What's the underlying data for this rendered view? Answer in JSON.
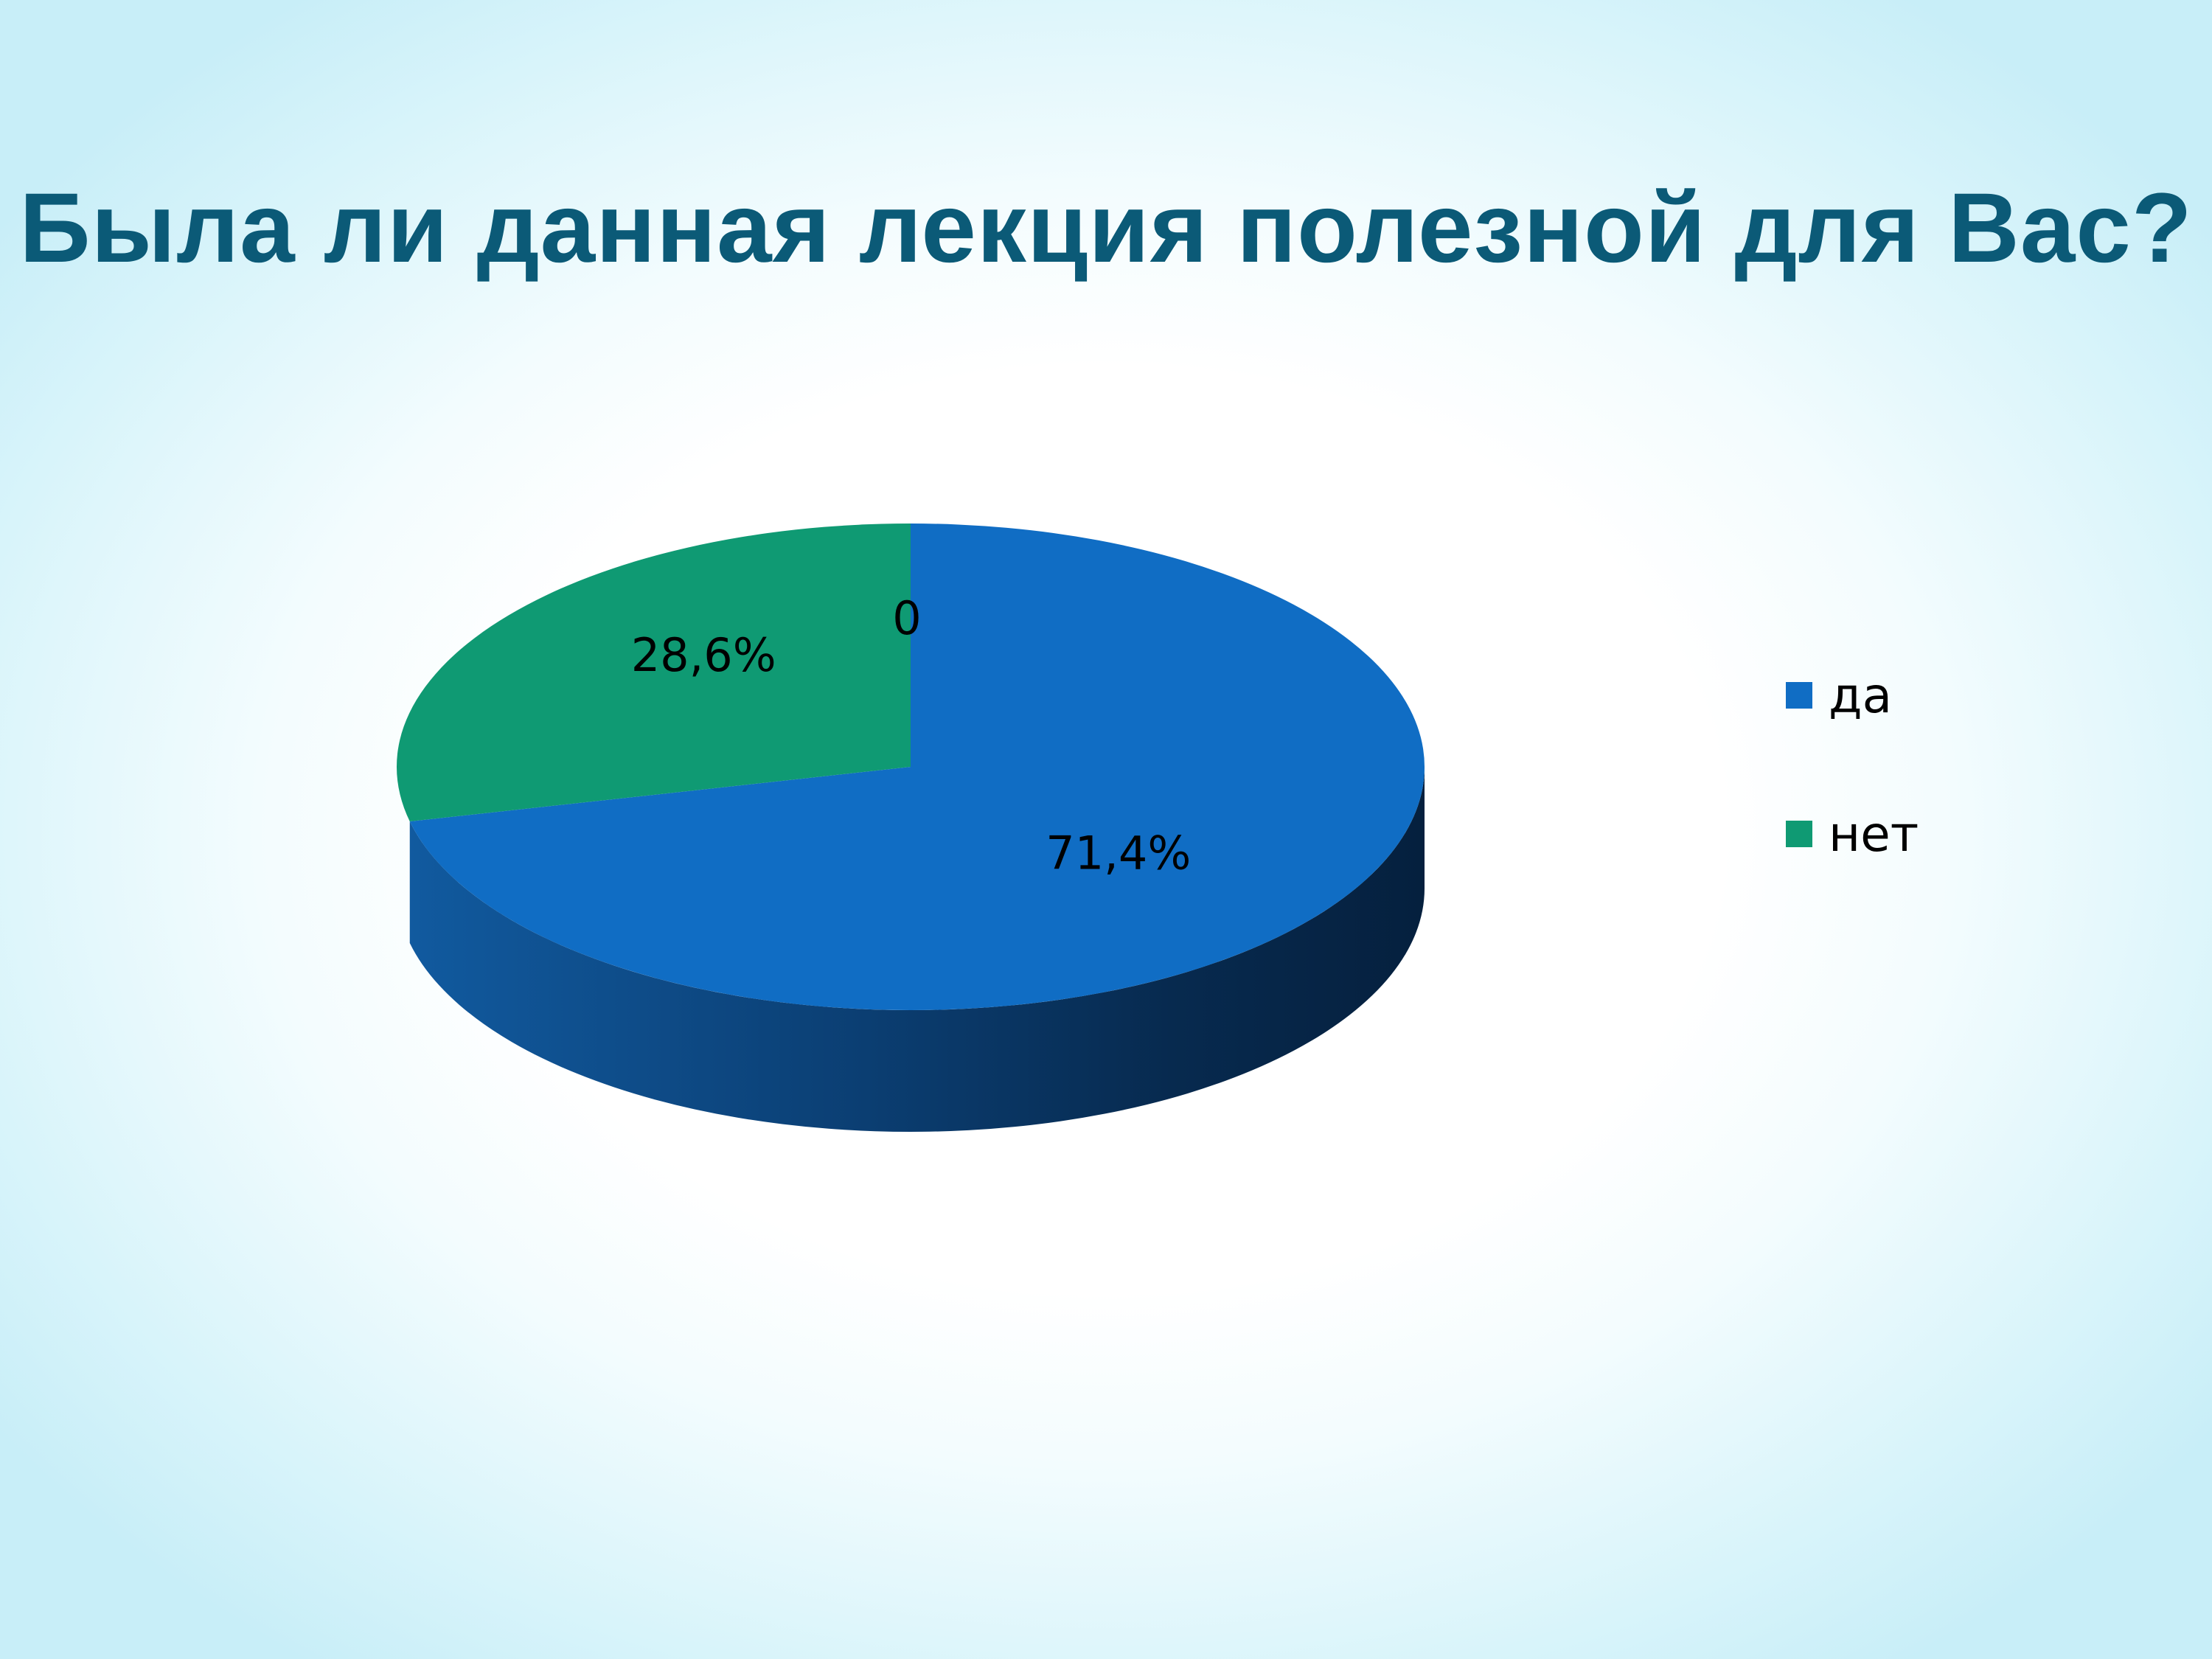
{
  "slide": {
    "title": "Была ли данная лекция полезной для Вас?"
  },
  "chart_data": {
    "type": "pie",
    "title": "Была ли данная лекция полезной для Вас?",
    "three_d": true,
    "categories": [
      "да",
      "нет"
    ],
    "values": [
      71.4,
      28.6
    ],
    "data_labels": [
      "71,4%",
      "28,6%"
    ],
    "extra_labels": [
      "0"
    ],
    "colors": [
      "#106dc4",
      "#0f9a73"
    ],
    "legend_position": "right"
  },
  "legend": {
    "items": [
      {
        "label": "да",
        "color": "#106dc4"
      },
      {
        "label": "нет",
        "color": "#0f9a73"
      }
    ]
  }
}
